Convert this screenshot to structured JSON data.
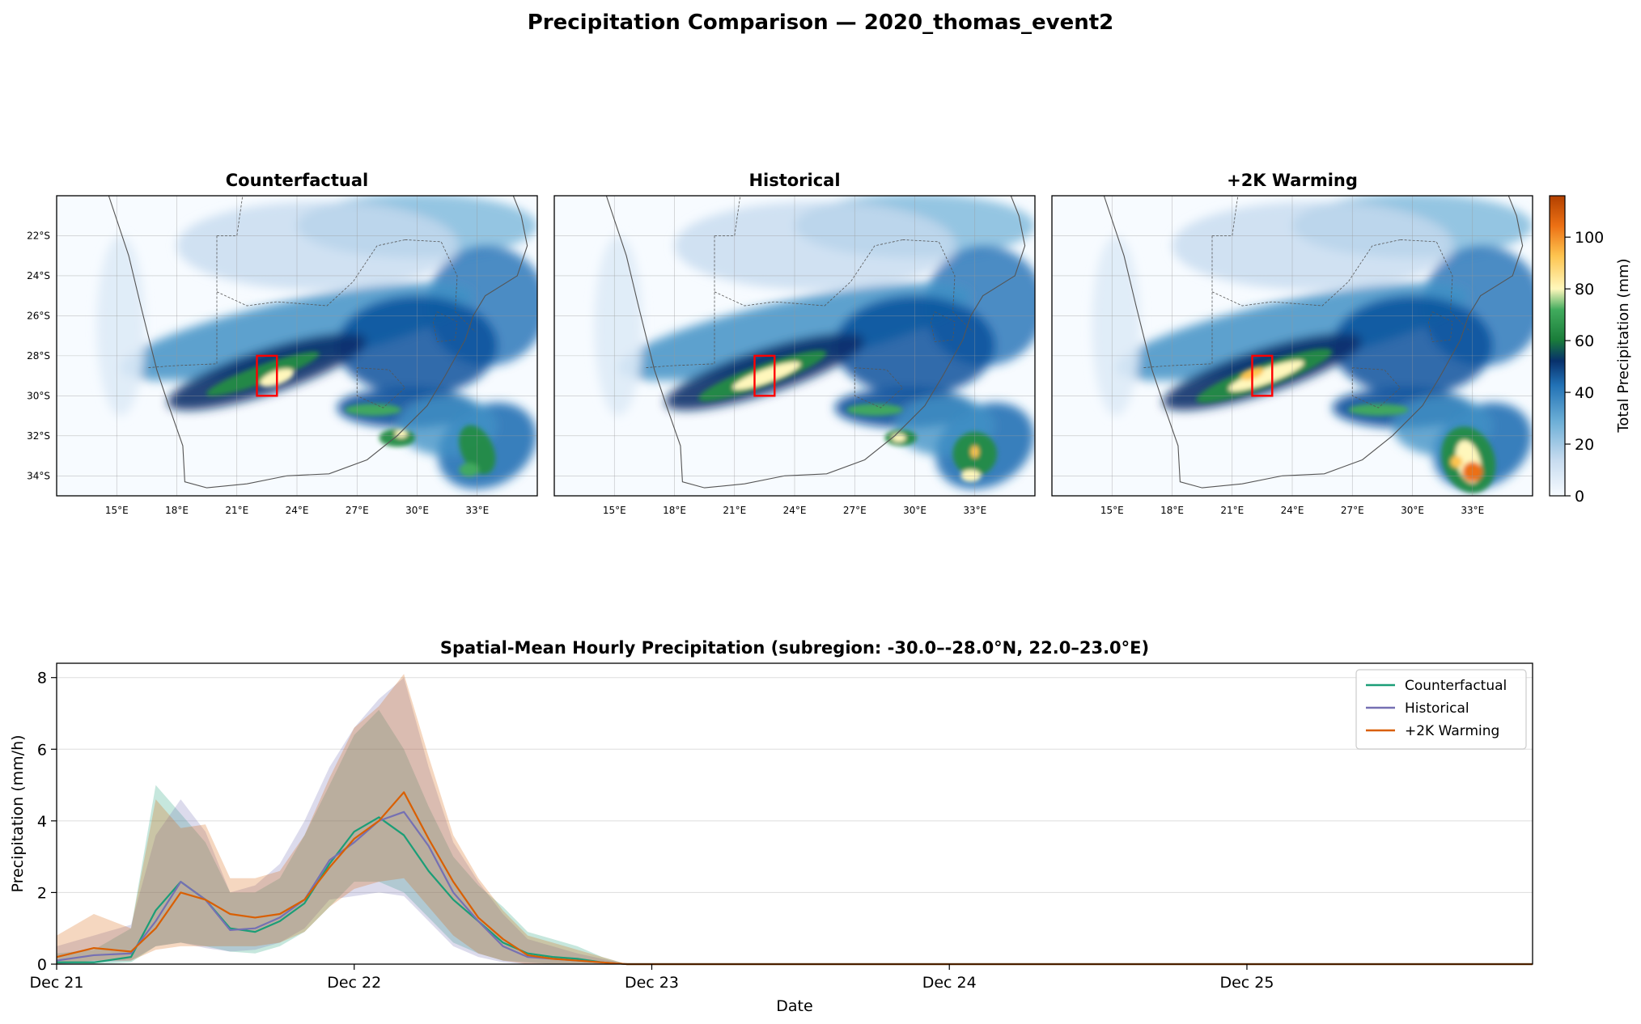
{
  "figure": {
    "title": "Precipitation Comparison — 2020_thomas_event2"
  },
  "maps": {
    "panels": [
      {
        "title": "Counterfactual"
      },
      {
        "title": "Historical"
      },
      {
        "title": "+2K Warming"
      }
    ],
    "lon_ticks": [
      "15°E",
      "18°E",
      "21°E",
      "24°E",
      "27°E",
      "30°E",
      "33°E"
    ],
    "lon_values": [
      15,
      18,
      21,
      24,
      27,
      30,
      33
    ],
    "lat_ticks": [
      "22°S",
      "24°S",
      "26°S",
      "28°S",
      "30°S",
      "32°S",
      "34°S"
    ],
    "lat_values": [
      -22,
      -24,
      -26,
      -28,
      -30,
      -32,
      -34
    ],
    "lon_range": [
      12,
      36
    ],
    "lat_range": [
      -35,
      -20
    ],
    "subregion_box": {
      "lon": [
        22,
        23
      ],
      "lat": [
        -30,
        -28
      ],
      "color": "#ff0000"
    },
    "colorbar": {
      "label": "Total Precipitation (mm)",
      "ticks": [
        "0",
        "20",
        "40",
        "60",
        "80",
        "100"
      ],
      "tick_values": [
        0,
        20,
        40,
        60,
        80,
        100
      ],
      "range": [
        0,
        116
      ]
    }
  },
  "chart_data": {
    "type": "line",
    "title": "Spatial-Mean Hourly Precipitation (subregion: -30.0–-28.0°N, 22.0–23.0°E)",
    "xlabel": "Date",
    "ylabel": "Precipitation (mm/h)",
    "x_ticks": [
      "Dec 21",
      "Dec 22",
      "Dec 23",
      "Dec 24",
      "Dec 25"
    ],
    "x_tick_values": [
      0,
      1,
      2,
      3,
      4
    ],
    "xlim": [
      0,
      4.96
    ],
    "ylim": [
      0,
      8.4
    ],
    "y_ticks": [
      "0",
      "2",
      "4",
      "6",
      "8"
    ],
    "y_tick_values": [
      0,
      2,
      4,
      6,
      8
    ],
    "grid": "horizontal",
    "legend": "top-right",
    "x": [
      0,
      0.125,
      0.25,
      0.333,
      0.417,
      0.5,
      0.583,
      0.667,
      0.75,
      0.833,
      0.917,
      1.0,
      1.083,
      1.167,
      1.25,
      1.333,
      1.417,
      1.5,
      1.583,
      1.667,
      1.75,
      1.833,
      1.917,
      2.0,
      2.5,
      3.0,
      3.5,
      4.0,
      4.5,
      4.96
    ],
    "series": [
      {
        "name": "Counterfactual",
        "color": "#1b9e77",
        "values": [
          0.05,
          0.05,
          0.2,
          1.5,
          2.3,
          1.8,
          1.0,
          0.9,
          1.2,
          1.7,
          2.8,
          3.7,
          4.1,
          3.6,
          2.6,
          1.8,
          1.2,
          0.6,
          0.3,
          0.2,
          0.15,
          0.05,
          0,
          0,
          0,
          0,
          0,
          0,
          0,
          0
        ],
        "lower": [
          0,
          0,
          0.05,
          0.5,
          0.6,
          0.5,
          0.35,
          0.3,
          0.5,
          0.9,
          1.6,
          2.3,
          2.3,
          2.0,
          1.3,
          0.6,
          0.3,
          0.1,
          0.05,
          0,
          0,
          0,
          0,
          0,
          0,
          0,
          0,
          0,
          0,
          0
        ],
        "upper": [
          0.3,
          0.4,
          1.0,
          5.0,
          4.2,
          3.4,
          2.0,
          2.0,
          2.4,
          3.6,
          5.0,
          6.4,
          7.1,
          6.0,
          4.4,
          3.0,
          2.2,
          1.6,
          0.9,
          0.7,
          0.5,
          0.2,
          0,
          0,
          0,
          0,
          0,
          0,
          0,
          0
        ]
      },
      {
        "name": "Historical",
        "color": "#7570b3",
        "values": [
          0.1,
          0.25,
          0.3,
          1.2,
          2.3,
          1.8,
          0.95,
          1.0,
          1.3,
          1.8,
          2.9,
          3.4,
          4.0,
          4.25,
          3.3,
          2.0,
          1.2,
          0.5,
          0.2,
          0.15,
          0.1,
          0.05,
          0,
          0,
          0,
          0,
          0,
          0,
          0,
          0
        ],
        "lower": [
          0,
          0.05,
          0.1,
          0.5,
          0.6,
          0.45,
          0.35,
          0.4,
          0.6,
          1.0,
          1.8,
          1.9,
          2.0,
          1.9,
          1.2,
          0.5,
          0.2,
          0.05,
          0,
          0,
          0,
          0,
          0,
          0,
          0,
          0,
          0,
          0,
          0,
          0
        ],
        "upper": [
          0.5,
          0.8,
          1.1,
          3.6,
          4.6,
          3.7,
          2.0,
          2.2,
          2.8,
          4.0,
          5.5,
          6.6,
          7.4,
          8.0,
          5.5,
          3.4,
          2.3,
          1.4,
          0.7,
          0.5,
          0.3,
          0.15,
          0,
          0,
          0,
          0,
          0,
          0,
          0,
          0
        ]
      },
      {
        "name": "+2K Warming",
        "color": "#d95f02",
        "values": [
          0.2,
          0.45,
          0.35,
          1.0,
          2.0,
          1.8,
          1.4,
          1.3,
          1.4,
          1.8,
          2.7,
          3.5,
          4.0,
          4.8,
          3.5,
          2.3,
          1.3,
          0.7,
          0.25,
          0.15,
          0.1,
          0.05,
          0,
          0,
          0,
          0,
          0,
          0,
          0,
          0
        ],
        "lower": [
          0,
          0.1,
          0.1,
          0.4,
          0.5,
          0.5,
          0.5,
          0.5,
          0.6,
          0.9,
          1.6,
          2.1,
          2.3,
          2.4,
          1.6,
          0.8,
          0.3,
          0.1,
          0,
          0,
          0,
          0,
          0,
          0,
          0,
          0,
          0,
          0,
          0,
          0
        ],
        "upper": [
          0.8,
          1.4,
          1.0,
          4.6,
          3.8,
          3.9,
          2.4,
          2.4,
          2.6,
          3.6,
          5.2,
          6.6,
          7.2,
          8.1,
          5.8,
          3.6,
          2.4,
          1.5,
          0.8,
          0.6,
          0.4,
          0.2,
          0,
          0,
          0,
          0,
          0,
          0,
          0,
          0
        ]
      }
    ]
  }
}
